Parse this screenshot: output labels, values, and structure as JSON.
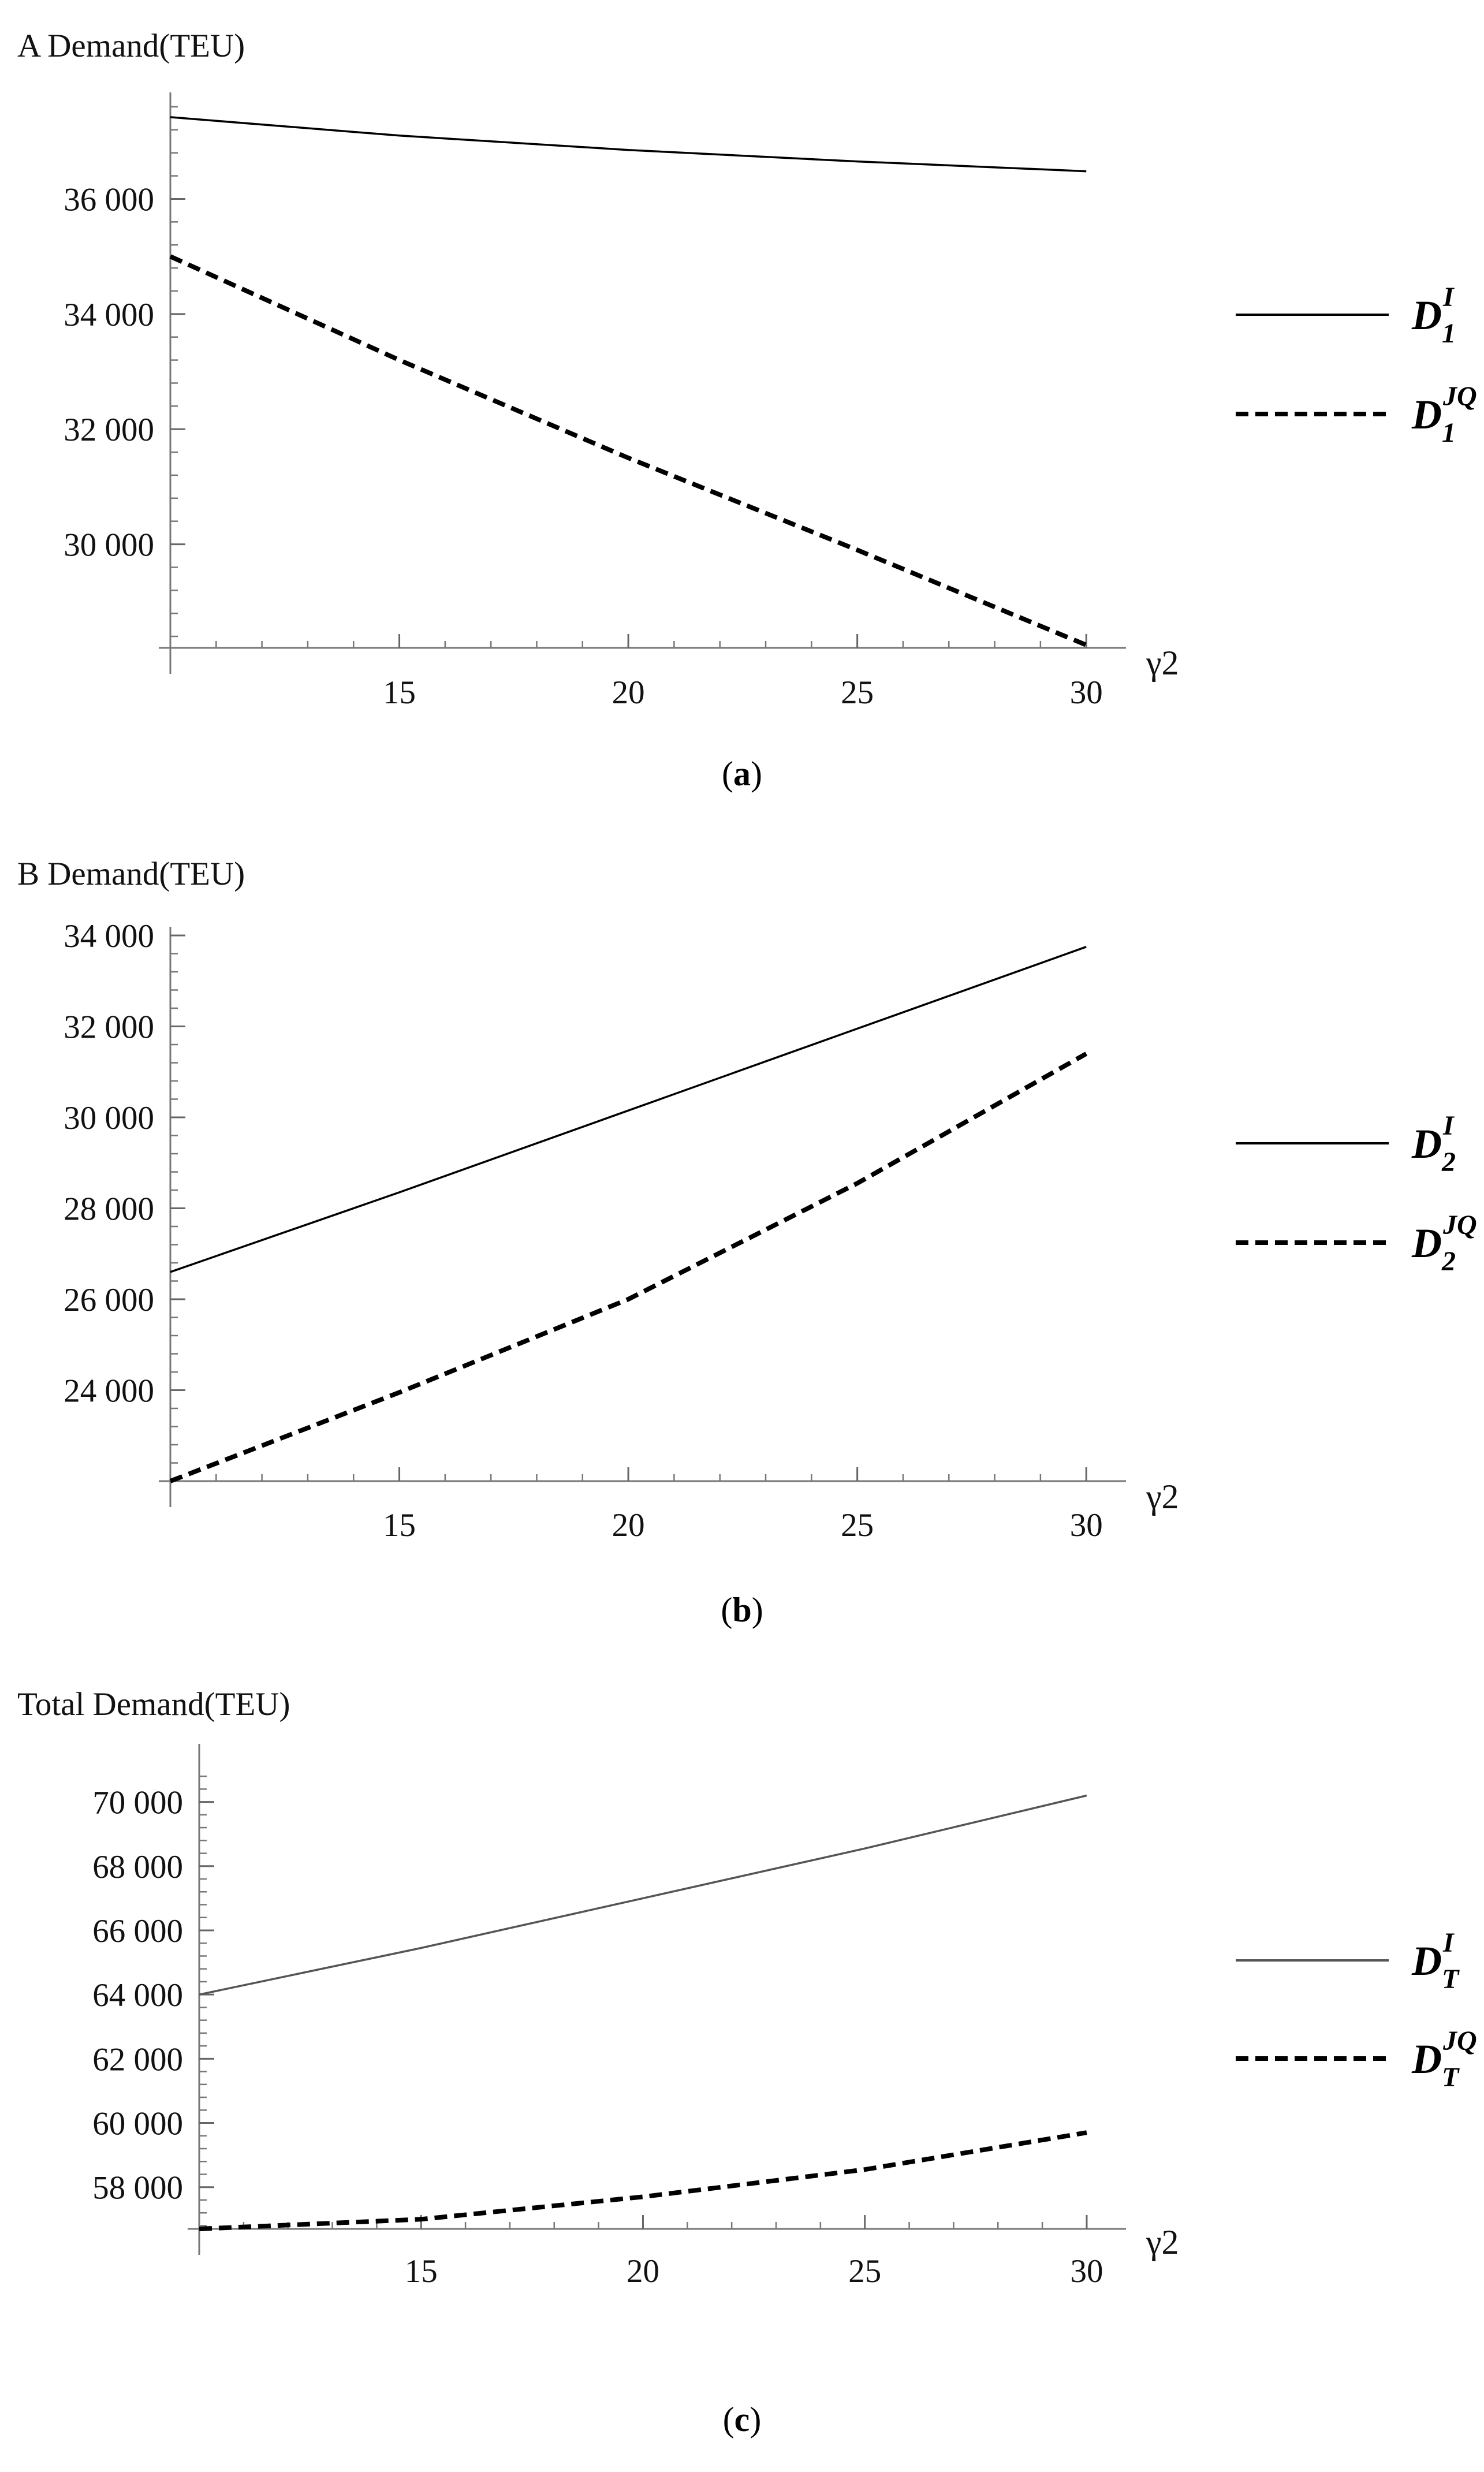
{
  "chart_data": [
    {
      "type": "line",
      "title": "A Demand(TEU)",
      "ylabel": "A Demand(TEU)",
      "xlabel": "γ2",
      "caption": {
        "open": "(",
        "letter": "a",
        "close": ")"
      },
      "xlim": [
        10,
        30.3
      ],
      "ylim": [
        28200,
        37800
      ],
      "x_origin_value": 10,
      "y_origin_value": 28200,
      "xticks": [
        {
          "value": 15,
          "label": "15"
        },
        {
          "value": 20,
          "label": "20"
        },
        {
          "value": 25,
          "label": "25"
        },
        {
          "value": 30,
          "label": "30"
        }
      ],
      "yticks": [
        {
          "value": 30000,
          "label": "30 000"
        },
        {
          "value": 32000,
          "label": "32 000"
        },
        {
          "value": 34000,
          "label": "34 000"
        },
        {
          "value": 36000,
          "label": "36 000"
        }
      ],
      "y_minor_step": 400,
      "series": [
        {
          "name": "D1^I",
          "legend_main": "D",
          "legend_sub": "1",
          "legend_sup": "I",
          "style": "solid",
          "color": "#000000",
          "x": [
            10,
            15,
            20,
            25,
            30
          ],
          "values": [
            37420,
            37100,
            36850,
            36650,
            36480
          ]
        },
        {
          "name": "D1^JQ",
          "legend_main": "D",
          "legend_sub": "1",
          "legend_sup": "JQ",
          "style": "dashed",
          "color": "#000000",
          "x": [
            10,
            15,
            20,
            25,
            30
          ],
          "values": [
            35000,
            33200,
            31500,
            29900,
            28250
          ]
        }
      ]
    },
    {
      "type": "line",
      "title": "B Demand(TEU)",
      "ylabel": "B Demand(TEU)",
      "xlabel": "γ2",
      "caption": {
        "open": "(",
        "letter": "b",
        "close": ")"
      },
      "xlim": [
        10,
        30.3
      ],
      "ylim": [
        22000,
        34000
      ],
      "x_origin_value": 10,
      "y_origin_value": 22000,
      "xticks": [
        {
          "value": 15,
          "label": "15"
        },
        {
          "value": 20,
          "label": "20"
        },
        {
          "value": 25,
          "label": "25"
        },
        {
          "value": 30,
          "label": "30"
        }
      ],
      "yticks": [
        {
          "value": 24000,
          "label": "24 000"
        },
        {
          "value": 26000,
          "label": "26 000"
        },
        {
          "value": 28000,
          "label": "28 000"
        },
        {
          "value": 30000,
          "label": "30 000"
        },
        {
          "value": 32000,
          "label": "32 000"
        },
        {
          "value": 34000,
          "label": "34 000"
        }
      ],
      "y_minor_step": 400,
      "series": [
        {
          "name": "D2^I",
          "legend_main": "D",
          "legend_sub": "2",
          "legend_sup": "I",
          "style": "solid",
          "color": "#000000",
          "x": [
            10,
            15,
            20,
            25,
            30
          ],
          "values": [
            26600,
            28350,
            30150,
            31950,
            33750
          ]
        },
        {
          "name": "D2^JQ",
          "legend_main": "D",
          "legend_sub": "2",
          "legend_sup": "JQ",
          "style": "dashed",
          "color": "#000000",
          "x": [
            10,
            15,
            20,
            25,
            30
          ],
          "values": [
            22000,
            23950,
            26000,
            28550,
            31400
          ]
        }
      ]
    },
    {
      "type": "line",
      "title": "Total Demand(TEU)",
      "ylabel": "Total Demand(TEU)",
      "xlabel": "γ2",
      "caption": {
        "open": "(",
        "letter": "c",
        "close": ")"
      },
      "xlim": [
        10,
        30.3
      ],
      "ylim": [
        56700,
        71000
      ],
      "x_origin_value": 10,
      "y_origin_value": 56700,
      "xticks": [
        {
          "value": 15,
          "label": "15"
        },
        {
          "value": 20,
          "label": "20"
        },
        {
          "value": 25,
          "label": "25"
        },
        {
          "value": 30,
          "label": "30"
        }
      ],
      "yticks": [
        {
          "value": 58000,
          "label": "58 000"
        },
        {
          "value": 60000,
          "label": "60 000"
        },
        {
          "value": 62000,
          "label": "62 000"
        },
        {
          "value": 64000,
          "label": "64 000"
        },
        {
          "value": 66000,
          "label": "66 000"
        },
        {
          "value": 68000,
          "label": "68 000"
        },
        {
          "value": 70000,
          "label": "70 000"
        }
      ],
      "y_minor_step": 400,
      "series": [
        {
          "name": "DT^I",
          "legend_main": "D",
          "legend_sub": "T",
          "legend_sup": "I",
          "style": "solid",
          "color": "#555555",
          "x": [
            10,
            15,
            20,
            25,
            30
          ],
          "values": [
            64000,
            65450,
            67000,
            68550,
            70200
          ]
        },
        {
          "name": "DT^JQ",
          "legend_main": "D",
          "legend_sub": "T",
          "legend_sup": "JQ",
          "style": "dashed",
          "color": "#000000",
          "x": [
            10,
            15,
            20,
            25,
            30
          ],
          "values": [
            56700,
            57000,
            57700,
            58550,
            59700
          ]
        }
      ]
    }
  ]
}
